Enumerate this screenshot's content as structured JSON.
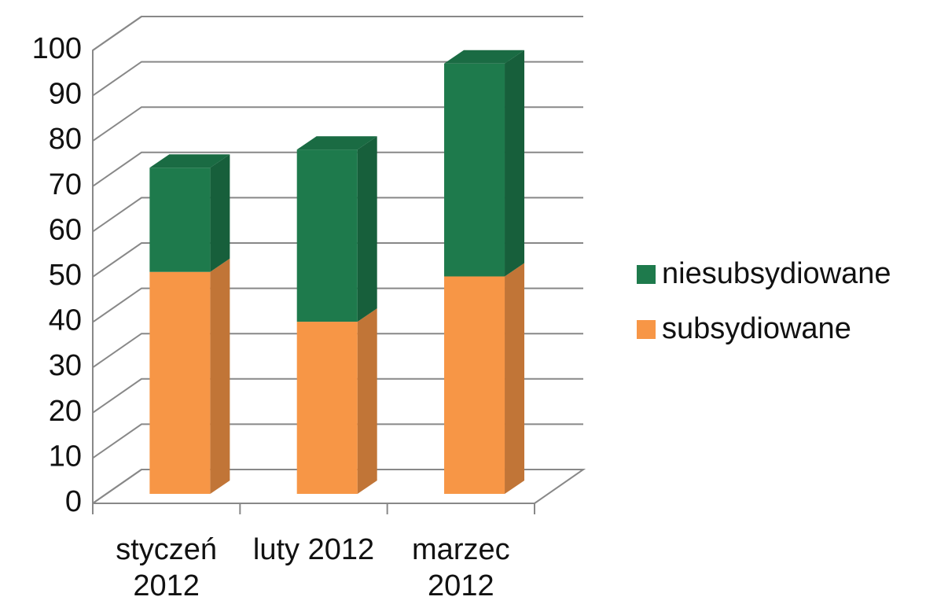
{
  "chart_data": {
    "type": "bar3d_stacked",
    "categories": [
      "styczeń 2012",
      "luty 2012",
      "marzec 2012"
    ],
    "series": [
      {
        "name": "subsydiowane",
        "color": "#f79646",
        "values": [
          49,
          38,
          48
        ]
      },
      {
        "name": "niesubsydiowane",
        "color": "#1e7a4c",
        "values": [
          23,
          38,
          47
        ]
      }
    ],
    "ylim": [
      0,
      100
    ],
    "yticks": [
      0,
      10,
      20,
      30,
      40,
      50,
      60,
      70,
      80,
      90,
      100
    ],
    "grid": true,
    "legend": "right"
  }
}
